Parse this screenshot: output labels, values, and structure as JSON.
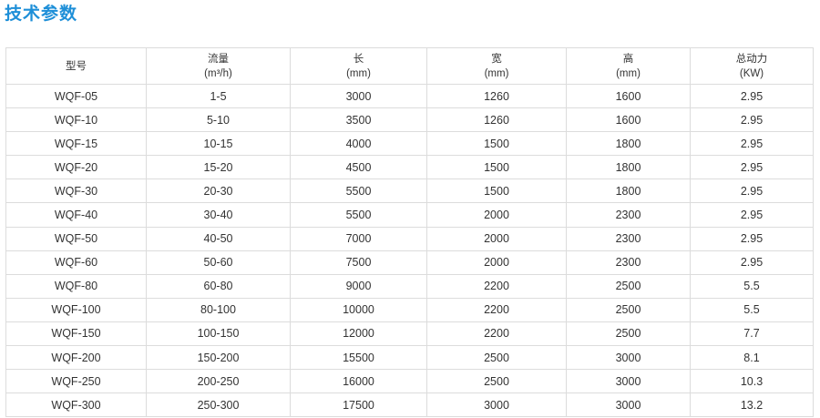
{
  "title": "技术参数",
  "table": {
    "headers": [
      {
        "label": "型号",
        "unit": ""
      },
      {
        "label": "流量",
        "unit": "(m³/h)"
      },
      {
        "label": "长",
        "unit": "(mm)"
      },
      {
        "label": "宽",
        "unit": "(mm)"
      },
      {
        "label": "高",
        "unit": "(mm)"
      },
      {
        "label": "总动力",
        "unit": "(KW)"
      }
    ],
    "rows": [
      [
        "WQF-05",
        "1-5",
        "3000",
        "1260",
        "1600",
        "2.95"
      ],
      [
        "WQF-10",
        "5-10",
        "3500",
        "1260",
        "1600",
        "2.95"
      ],
      [
        "WQF-15",
        "10-15",
        "4000",
        "1500",
        "1800",
        "2.95"
      ],
      [
        "WQF-20",
        "15-20",
        "4500",
        "1500",
        "1800",
        "2.95"
      ],
      [
        "WQF-30",
        "20-30",
        "5500",
        "1500",
        "1800",
        "2.95"
      ],
      [
        "WQF-40",
        "30-40",
        "5500",
        "2000",
        "2300",
        "2.95"
      ],
      [
        "WQF-50",
        "40-50",
        "7000",
        "2000",
        "2300",
        "2.95"
      ],
      [
        "WQF-60",
        "50-60",
        "7500",
        "2000",
        "2300",
        "2.95"
      ],
      [
        "WQF-80",
        "60-80",
        "9000",
        "2200",
        "2500",
        "5.5"
      ],
      [
        "WQF-100",
        "80-100",
        "10000",
        "2200",
        "2500",
        "5.5"
      ],
      [
        "WQF-150",
        "100-150",
        "12000",
        "2200",
        "2500",
        "7.7"
      ],
      [
        "WQF-200",
        "150-200",
        "15500",
        "2500",
        "3000",
        "8.1"
      ],
      [
        "WQF-250",
        "200-250",
        "16000",
        "2500",
        "3000",
        "10.3"
      ],
      [
        "WQF-300",
        "250-300",
        "17500",
        "3000",
        "3000",
        "13.2"
      ]
    ]
  }
}
